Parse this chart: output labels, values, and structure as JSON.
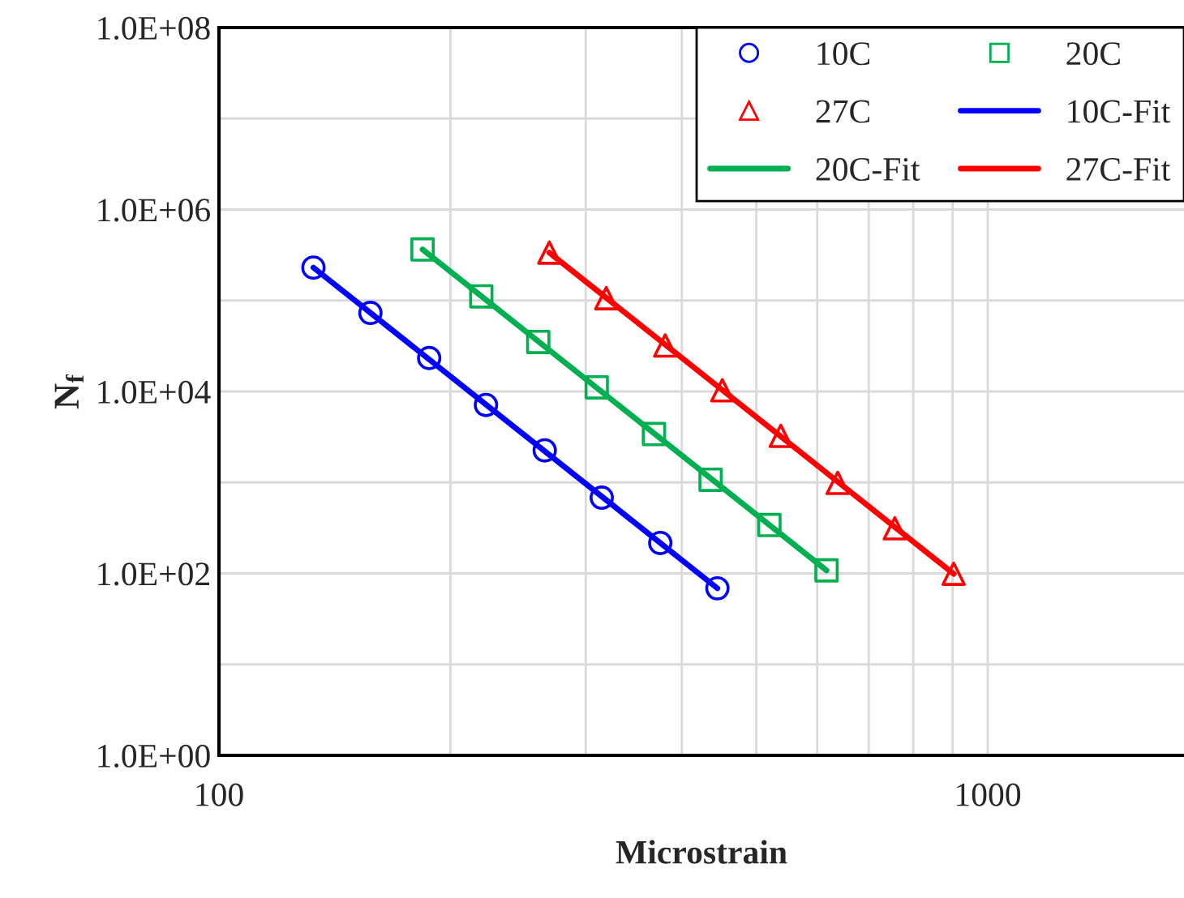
{
  "chart_data": {
    "type": "scatter",
    "xlabel": "Microstrain",
    "ylabel": "N$_{f}$",
    "log": "xy",
    "xlim": [
      100,
      1800
    ],
    "ylim": [
      1,
      100000000
    ],
    "xticks": [
      100,
      1000,
      {
        "value": 200,
        "label": null
      },
      {
        "value": 300,
        "label": null
      },
      {
        "value": 400,
        "label": null
      },
      {
        "value": 500,
        "label": null
      },
      {
        "value": 600,
        "label": null
      },
      {
        "value": 700,
        "label": null
      },
      {
        "value": 800,
        "label": null
      },
      {
        "value": 900,
        "label": null
      }
    ],
    "yticks": [
      {
        "value": 1,
        "label": "1.0E+00"
      },
      {
        "value": 100,
        "label": "1.0E+02"
      },
      {
        "value": 10000,
        "label": "1.0E+04"
      },
      {
        "value": 1000000,
        "label": "1.0E+06"
      },
      {
        "value": 100000000,
        "label": "1.0E+08"
      },
      {
        "value": 10,
        "label": null
      },
      {
        "value": 1000,
        "label": null
      },
      {
        "value": 100000,
        "label": null
      },
      {
        "value": 10000000,
        "label": null
      }
    ],
    "grid": true,
    "legend": "top right",
    "series": [
      {
        "name": "10C",
        "marker": "circle",
        "color": "#0000ff",
        "x": [
          132.7,
          157.4,
          187.7,
          222.5,
          265.3,
          314.7,
          375,
          445
        ],
        "values": [
          230000,
          73000,
          23300,
          7100,
          2250,
          680,
          216,
          68.6
        ]
      },
      {
        "name": "20C",
        "marker": "square",
        "color": "#00b050",
        "x": [
          184,
          219.4,
          260.2,
          310,
          368,
          436,
          520,
          617
        ],
        "values": [
          364000,
          111000,
          35000,
          11100,
          3400,
          1070,
          340,
          108
        ]
      },
      {
        "name": "27C",
        "marker": "triangle",
        "color": "#ff0000",
        "x": [
          269,
          319,
          380.6,
          451.6,
          538,
          638,
          757,
          903
        ],
        "values": [
          336000,
          106000,
          32000,
          10300,
          3250,
          988,
          313,
          99
        ]
      },
      {
        "name": "10C-Fit",
        "type": "line",
        "color": "#0000ff",
        "x": [
          132.7,
          445
        ],
        "values": [
          230000,
          68.6
        ]
      },
      {
        "name": "20C-Fit",
        "type": "line",
        "color": "#00b050",
        "x": [
          184,
          617
        ],
        "values": [
          364000,
          108
        ]
      },
      {
        "name": "27C-Fit",
        "type": "line",
        "color": "#ff0000",
        "x": [
          269,
          903
        ],
        "values": [
          336000,
          99
        ]
      }
    ]
  }
}
